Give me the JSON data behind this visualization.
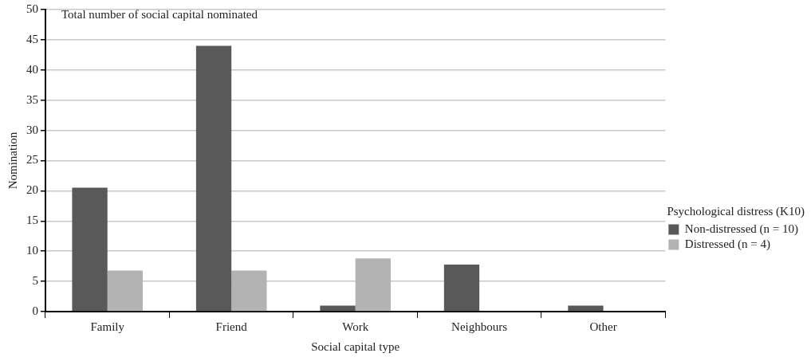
{
  "chart_data": {
    "type": "bar",
    "title": "Total number of social capital nominated",
    "xlabel": "Social capital type",
    "ylabel": "Nomination",
    "legend_title": "Psychological distress (K10)",
    "categories": [
      "Family",
      "Friend",
      "Work",
      "Neighbours",
      "Other"
    ],
    "series": [
      {
        "name": "Non-distressed (n = 10)",
        "color": "#595959",
        "values": [
          20.5,
          44,
          1,
          7.8,
          1
        ]
      },
      {
        "name": "Distressed (n = 4)",
        "color": "#b3b3b3",
        "values": [
          6.8,
          6.8,
          8.8,
          0,
          0
        ]
      }
    ],
    "ylim": [
      0,
      50
    ],
    "yticks": [
      0,
      5,
      10,
      15,
      20,
      25,
      30,
      35,
      40,
      45,
      50
    ],
    "grid": "y",
    "legend": "right"
  }
}
